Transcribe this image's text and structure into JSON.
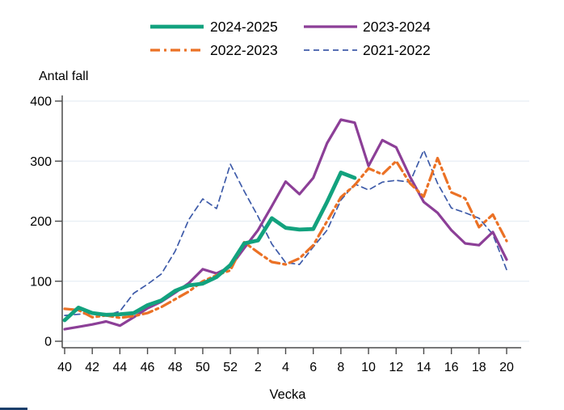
{
  "axes": {
    "y_title": "Antal fall",
    "x_label": "Vecka",
    "y_tick_labels": [
      "0",
      "100",
      "200",
      "300",
      "400"
    ],
    "x_tick_labels": [
      "40",
      "42",
      "44",
      "46",
      "48",
      "50",
      "52",
      "2",
      "4",
      "6",
      "8",
      "10",
      "12",
      "14",
      "16",
      "18",
      "20"
    ]
  },
  "legend": {
    "items": [
      {
        "label": "2024-2025",
        "color": "#12A27E",
        "style": "solid-thick"
      },
      {
        "label": "2023-2024",
        "color": "#8C3F97",
        "style": "solid"
      },
      {
        "label": "2022-2023",
        "color": "#EB7125",
        "style": "dash-dot"
      },
      {
        "label": "2021-2022",
        "color": "#3E5BA9",
        "style": "dashed"
      }
    ]
  },
  "colors": {
    "gridline": "#E7EEF4",
    "axis": "#4a4a4a",
    "teal": "#12A27E",
    "purple": "#8C3F97",
    "orange": "#EB7125",
    "blue": "#3E5BA9"
  },
  "chart_data": {
    "type": "line",
    "title": "",
    "xlabel": "Vecka",
    "ylabel": "Antal fall",
    "ylim": [
      0,
      400
    ],
    "y_ticks": [
      0,
      100,
      200,
      300,
      400
    ],
    "grid": "horizontal",
    "legend_position": "top",
    "x_categories": [
      "40",
      "41",
      "42",
      "43",
      "44",
      "45",
      "46",
      "47",
      "48",
      "49",
      "50",
      "51",
      "52",
      "1",
      "2",
      "3",
      "4",
      "5",
      "6",
      "7",
      "8",
      "9",
      "10",
      "11",
      "12",
      "13",
      "14",
      "15",
      "16",
      "17",
      "18",
      "19",
      "20"
    ],
    "x_tick_labels": [
      "40",
      "42",
      "44",
      "46",
      "48",
      "50",
      "52",
      "2",
      "4",
      "6",
      "8",
      "10",
      "12",
      "14",
      "16",
      "18",
      "20"
    ],
    "series": [
      {
        "name": "2021-2022",
        "style": "dashed",
        "color": "#3E5BA9",
        "values": [
          43,
          45,
          46,
          43,
          50,
          80,
          95,
          112,
          150,
          203,
          237,
          221,
          295,
          250,
          208,
          162,
          131,
          128,
          157,
          185,
          235,
          262,
          252,
          265,
          268,
          265,
          318,
          263,
          222,
          214,
          205,
          178,
          119
        ]
      },
      {
        "name": "2023-2024",
        "style": "solid",
        "color": "#8C3F97",
        "values": [
          20,
          24,
          28,
          33,
          26,
          40,
          55,
          66,
          81,
          97,
          120,
          113,
          124,
          155,
          185,
          225,
          266,
          245,
          272,
          330,
          369,
          364,
          292,
          335,
          323,
          274,
          232,
          214,
          185,
          163,
          160,
          182,
          136
        ]
      },
      {
        "name": "2022-2023",
        "style": "dash-dot",
        "color": "#EB7125",
        "values": [
          54,
          52,
          40,
          43,
          39,
          42,
          47,
          57,
          70,
          83,
          100,
          110,
          118,
          165,
          148,
          132,
          128,
          138,
          160,
          200,
          240,
          260,
          288,
          278,
          300,
          263,
          241,
          305,
          248,
          238,
          190,
          211,
          167
        ]
      },
      {
        "name": "2024-2025",
        "style": "solid-thick",
        "color": "#12A27E",
        "values": [
          35,
          56,
          47,
          44,
          45,
          47,
          60,
          68,
          84,
          93,
          96,
          107,
          127,
          163,
          168,
          205,
          189,
          186,
          187,
          232,
          281,
          272
        ]
      }
    ]
  }
}
